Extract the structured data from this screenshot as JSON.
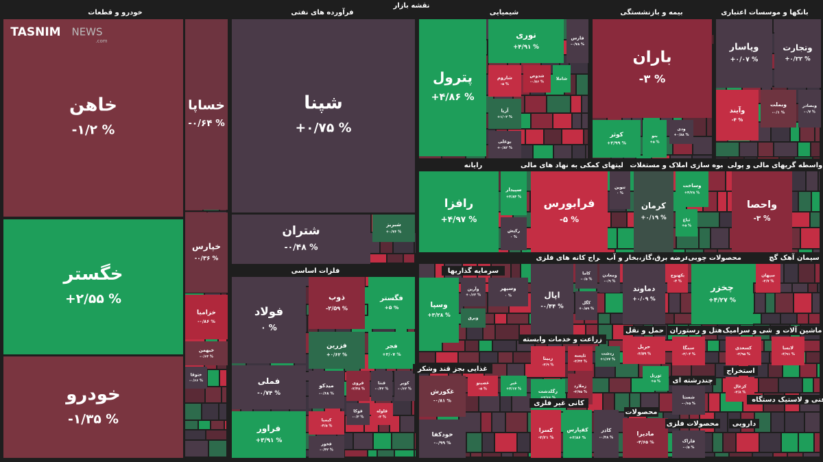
{
  "title": "نقشه بازار",
  "logo": {
    "brand": "TASNIM",
    "suffix": "NEWS",
    "domain": ".com"
  },
  "sectors": [
    {
      "name": "خودرو و قطعات",
      "tiles": [
        {
          "name": "خاهن",
          "change": "-۱/۲ %",
          "color": "#7a3540"
        },
        {
          "name": "خگستر",
          "change": "+۲/۵۵ %",
          "color": "#1e9e5a"
        },
        {
          "name": "خودرو",
          "change": "-۱/۳۵ %",
          "color": "#7a3540"
        },
        {
          "name": "خساپا",
          "change": "-۰/۶۴ %",
          "color": "#6e3440"
        },
        {
          "name": "خپارس",
          "change": "-۰/۳۶ %",
          "color": "#6e3440"
        },
        {
          "name": "خزامیا",
          "change": "-۰/۸۶ %",
          "color": "#b0283c"
        },
        {
          "name": "خبهمن",
          "change": "-۰/۶۴ %",
          "color": "#6e3440"
        },
        {
          "name": "ختوقا",
          "change": "-۰/۶۶ %",
          "color": "#4a3a48"
        }
      ]
    },
    {
      "name": "فرآورده های نفتی",
      "tiles": [
        {
          "name": "شپنا",
          "change": "+۰/۷۵ %",
          "color": "#4a3a48"
        },
        {
          "name": "شتران",
          "change": "-۰/۴۸ %",
          "color": "#4a3a48"
        },
        {
          "name": "شبریز",
          "change": "+۰/۷۶ %",
          "color": "#2d6b4c"
        }
      ]
    },
    {
      "name": "فلزات اساسی",
      "tiles": [
        {
          "name": "فولاد",
          "change": "۰ %",
          "color": "#4a3a48"
        },
        {
          "name": "ذوب",
          "change": "-۲/۵۹ %",
          "color": "#8a2a3c"
        },
        {
          "name": "فگستر",
          "change": "+۵ %",
          "color": "#1e9e5a"
        },
        {
          "name": "فزرین",
          "change": "+۰/۶۲ %",
          "color": "#2d6b4c"
        },
        {
          "name": "فجر",
          "change": "+۲/۰۷ %",
          "color": "#1e9e5a"
        },
        {
          "name": "فملی",
          "change": "-۰/۷۴ %",
          "color": "#4a3a48"
        },
        {
          "name": "فراور",
          "change": "+۳/۹۱ %",
          "color": "#1e9e5a"
        },
        {
          "name": "میدکو",
          "change": "-۰/۶۸ %",
          "color": "#4a3a48"
        },
        {
          "name": "فروی",
          "change": "-۲/۴۸ %",
          "color": "#8a2a3c"
        },
        {
          "name": "فنتا",
          "change": "-۰/۴۲ %",
          "color": "#4a3a48"
        },
        {
          "name": "کویر",
          "change": "-۰/۶۲ %",
          "color": "#4a3a48"
        },
        {
          "name": "کیمیا",
          "change": "-۴/۵ %",
          "color": "#c42e44"
        },
        {
          "name": "فوکا",
          "change": "-۰/۳ %",
          "color": "#4a3a48"
        },
        {
          "name": "فلوله",
          "change": "-۳ %",
          "color": "#c42e44"
        },
        {
          "name": "فخوز",
          "change": "-۰/۴۲ %",
          "color": "#4a3a48"
        }
      ]
    },
    {
      "name": "شیمیایی",
      "tiles": [
        {
          "name": "پترول",
          "change": "+۴/۸۶ %",
          "color": "#1e9e5a"
        },
        {
          "name": "نوری",
          "change": "+۴/۹۱ %",
          "color": "#1e9e5a"
        },
        {
          "name": "فارس",
          "change": "-۰/۷۸ %",
          "color": "#4a3a48"
        },
        {
          "name": "شاروم",
          "change": "-۵ %",
          "color": "#c42e44"
        },
        {
          "name": "شدوص",
          "change": "-۰/۸۶ %",
          "color": "#b0283c"
        },
        {
          "name": "شاملا",
          "change": "+۵ %",
          "color": "#1e9e5a"
        },
        {
          "name": "آریا",
          "change": "+۱/۰۲ %",
          "color": "#2d6b4c"
        },
        {
          "name": "بوعلی",
          "change": "+۰/۸۲ %",
          "color": "#4a3a48"
        }
      ]
    },
    {
      "name": "بیمه و بازنشستگی",
      "tiles": [
        {
          "name": "باران",
          "change": "-۳ %",
          "color": "#8a2a3c"
        },
        {
          "name": "کوثر",
          "change": "+۲/۹۹ %",
          "color": "#1e9e5a"
        },
        {
          "name": "بنو",
          "change": "+۵ %",
          "color": "#1e9e5a"
        },
        {
          "name": "ودی",
          "change": "+۰/۸۸ %",
          "color": "#4a3a48"
        }
      ]
    },
    {
      "name": "بانکها و موسسات اعتباری",
      "tiles": [
        {
          "name": "وپاسار",
          "change": "+۰/۰۷ %",
          "color": "#4a3a48"
        },
        {
          "name": "وتجارت",
          "change": "+۰/۲۲ %",
          "color": "#4a3a48"
        },
        {
          "name": "وآیند",
          "change": "-۴ %",
          "color": "#c42e44"
        },
        {
          "name": "وبملت",
          "change": "-۰/۱ %",
          "color": "#6e3440"
        },
        {
          "name": "وبصادر",
          "change": "-۰/۷ %",
          "color": "#4a3a48"
        }
      ]
    },
    {
      "name": "رایانه",
      "tiles": [
        {
          "name": "رافزا",
          "change": "+۴/۹۷ %",
          "color": "#1e9e5a"
        },
        {
          "name": "سپیدار",
          "change": "+۴/۸۴ %",
          "color": "#1e9e5a"
        },
        {
          "name": "رکیش",
          "change": "۰ %",
          "color": "#4a3a48"
        }
      ]
    },
    {
      "name": "فعالیتهای کمکی به نهاد های مالی",
      "tiles": [
        {
          "name": "فرابورس",
          "change": "-۵ %",
          "color": "#c42e44"
        },
        {
          "name": "تنوین",
          "change": "۰ %",
          "color": "#4a3a48"
        }
      ]
    },
    {
      "name": "انبوه سازی املاک و مستغلات",
      "tiles": [
        {
          "name": "کرمان",
          "change": "+۰/۱۹ %",
          "color": "#3d5048"
        },
        {
          "name": "وساخت",
          "change": "+۴/۲۸ %",
          "color": "#1e9e5a"
        },
        {
          "name": "ثباغ",
          "change": "+۵ %",
          "color": "#1e9e5a"
        }
      ]
    },
    {
      "name": "واسطه گریهای مالی و پولی",
      "tiles": [
        {
          "name": "واحصا",
          "change": "-۳ %",
          "color": "#8a2a3c"
        }
      ]
    },
    {
      "name": "سرمایه گذاریها",
      "tiles": [
        {
          "name": "وسپا",
          "change": "+۳/۲۸ %",
          "color": "#1e9e5a"
        },
        {
          "name": "وآرین",
          "change": "+۰/۶۲ %",
          "color": "#4a3a48"
        },
        {
          "name": "وسپهر",
          "change": "۰ %",
          "color": "#4a3a48"
        },
        {
          "name": "وبرق",
          "change": "+۳ %",
          "color": "#2d6b4c"
        }
      ]
    },
    {
      "name": "استخراج کانه های فلزی",
      "tiles": [
        {
          "name": "اپال",
          "change": "-۰/۴۴ %",
          "color": "#4a3a48"
        },
        {
          "name": "کاما",
          "change": "-۰/۵ %",
          "color": "#4a3a48"
        },
        {
          "name": "کگل",
          "change": "+۰/۵۹ %",
          "color": "#4a3a48"
        },
        {
          "name": "ومعادن",
          "change": "-۰/۹ %",
          "color": "#4a3a48"
        }
      ]
    },
    {
      "name": "عرضه برق،گاز،بخار و آب",
      "tiles": [
        {
          "name": "دماوند",
          "change": "+۰/۰۹ %",
          "color": "#4a3a48"
        },
        {
          "name": "بکهنوج",
          "change": "-۴ %",
          "color": "#c42e44"
        }
      ]
    },
    {
      "name": "محصولات چوبی",
      "tiles": [
        {
          "name": "چخزر",
          "change": "+۴/۲۷ %",
          "color": "#1e9e5a"
        }
      ]
    },
    {
      "name": "سیمان آهک گچ",
      "tiles": [
        {
          "name": "سیهان",
          "change": "-۲/۷ %",
          "color": "#c42e44"
        }
      ]
    },
    {
      "name": "زراعت و خدمات وابسته",
      "tiles": [
        {
          "name": "زبینا",
          "change": "-۳/۹ %",
          "color": "#c42e44"
        },
        {
          "name": "تلیسه",
          "change": "-۳/۴۴ %",
          "color": "#b0283c"
        },
        {
          "name": "زگلدشت",
          "change": "+۲/۶۶ %",
          "color": "#1e9e5a"
        },
        {
          "name": "زملارد",
          "change": "-۳/۷۵ %",
          "color": "#8a2a3c"
        },
        {
          "name": "زدشت",
          "change": "+۱/۶۷ %",
          "color": "#2d6b4c"
        }
      ]
    },
    {
      "name": "غذایی بجز قند وشکر",
      "tiles": [
        {
          "name": "غکورش",
          "change": "-۰/۸۱ %",
          "color": "#6e3440"
        },
        {
          "name": "غصینو",
          "change": "-۵ %",
          "color": "#c42e44"
        },
        {
          "name": "غبر",
          "change": "+۴/۱۷ %",
          "color": "#1e9e5a"
        },
        {
          "name": "خودکفا",
          "change": "-۰/۹۹ %",
          "color": "#4a3a48"
        }
      ]
    },
    {
      "name": "کانی غیر فلزی",
      "tiles": [
        {
          "name": "کسرا",
          "change": "-۳/۲۱ %",
          "color": "#c42e44"
        },
        {
          "name": "کفپارس",
          "change": "+۳/۸۶ %",
          "color": "#1e9e5a"
        },
        {
          "name": "کاذر",
          "change": "-۰/۳۸ %",
          "color": "#4a3a48"
        }
      ]
    },
    {
      "name": "حمل و نقل",
      "tiles": [
        {
          "name": "حریل",
          "change": "-۳/۵۹ %",
          "color": "#c42e44"
        },
        {
          "name": "توریل",
          "change": "+۵ %",
          "color": "#1e9e5a"
        }
      ]
    },
    {
      "name": "هتل و رستوران",
      "tiles": [
        {
          "name": "سمگا",
          "change": "-۳/۰۴ %",
          "color": "#c42e44"
        }
      ]
    },
    {
      "name": "کاشی و سرامیک",
      "tiles": [
        {
          "name": "کسعدی",
          "change": "-۳/۹۵ %",
          "color": "#c42e44"
        }
      ]
    },
    {
      "name": "ماشین آلات و",
      "tiles": [
        {
          "name": "لابسا",
          "change": "-۴/۹۱ %",
          "color": "#c42e44"
        }
      ]
    },
    {
      "name": "محصولات",
      "tiles": [
        {
          "name": "مادیرا",
          "change": "-۳/۶۵ %",
          "color": "#8a2a3c"
        }
      ]
    },
    {
      "name": "چندرشته ای",
      "tiles": [
        {
          "name": "شستا",
          "change": "-۰/۶۵ %",
          "color": "#4a3a48"
        }
      ]
    },
    {
      "name": "استخراج",
      "tiles": [
        {
          "name": "کزغال",
          "change": "-۳/۸ %",
          "color": "#c42e44"
        }
      ]
    },
    {
      "name": "محصولات فلزی",
      "tiles": [
        {
          "name": "فاراک",
          "change": "-۰/۵ %",
          "color": "#4a3a48"
        }
      ]
    },
    {
      "name": "دارویی",
      "tiles": []
    },
    {
      "name": "فنی و لاستیک دستگاه",
      "tiles": []
    }
  ]
}
